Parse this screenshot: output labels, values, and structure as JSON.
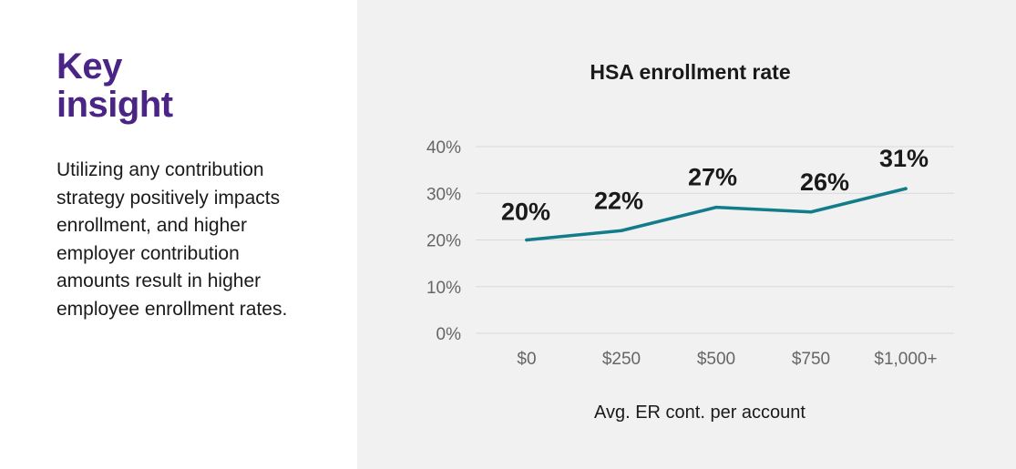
{
  "insight": {
    "heading_line1": "Key",
    "heading_line2": "insight",
    "body": "Utilizing any contribution strategy positively impacts enrollment, and higher employer contribution amounts result in higher employee enrollment rates."
  },
  "colors": {
    "accent": "#4b2585",
    "line": "#127c8b",
    "panel_bg": "#f1f1f1"
  },
  "chart_data": {
    "type": "line",
    "title": "HSA enrollment rate",
    "xlabel": "Avg. ER cont. per account",
    "ylabel": "",
    "categories": [
      "$0",
      "$250",
      "$500",
      "$750",
      "$1,000+"
    ],
    "series": [
      {
        "values": [
          20,
          22,
          27,
          26,
          31
        ]
      }
    ],
    "data_labels": [
      "20%",
      "22%",
      "27%",
      "26%",
      "31%"
    ],
    "y_ticks": [
      {
        "value": 0,
        "label": "0%"
      },
      {
        "value": 10,
        "label": "10%"
      },
      {
        "value": 20,
        "label": "20%"
      },
      {
        "value": 30,
        "label": "30%"
      },
      {
        "value": 40,
        "label": "40%"
      }
    ],
    "ylim": [
      0,
      40
    ],
    "grid": true,
    "legend": "none"
  }
}
